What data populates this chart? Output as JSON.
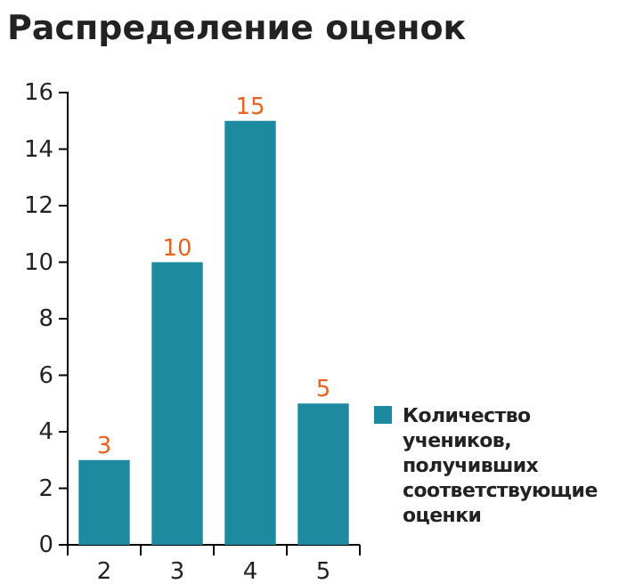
{
  "chart_data": {
    "type": "bar",
    "title": "Распределение оценок",
    "categories": [
      "2",
      "3",
      "4",
      "5"
    ],
    "series": [
      {
        "name": "Количество учеников, получивших соответствующие оценки",
        "color": "#1e8aa0",
        "values": [
          3,
          10,
          15,
          5
        ]
      }
    ],
    "ylim": [
      0,
      16
    ],
    "yticks": [
      0,
      2,
      4,
      6,
      8,
      10,
      12,
      14,
      16
    ],
    "data_labels": true,
    "legend": "right",
    "grid": false
  }
}
